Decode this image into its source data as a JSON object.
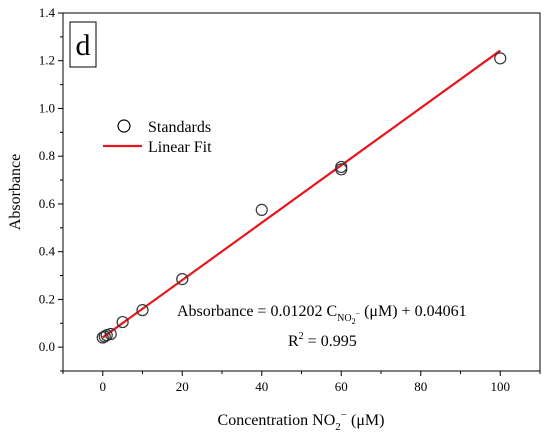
{
  "chart_data": {
    "type": "scatter",
    "panel_label": "d",
    "xlabel": {
      "prefix": "Concentration NO",
      "sub": "2",
      "sup": "−",
      "suffix": " (μM)"
    },
    "ylabel": "Absorbance",
    "xlim": [
      -10,
      110
    ],
    "ylim": [
      -0.1,
      1.4
    ],
    "xticks": [
      0,
      20,
      40,
      60,
      80,
      100
    ],
    "xtick_labels": [
      "0",
      "20",
      "40",
      "60",
      "80",
      "100"
    ],
    "yticks": [
      0.0,
      0.2,
      0.4,
      0.6,
      0.8,
      1.0,
      1.2,
      1.4
    ],
    "ytick_labels": [
      "0.0",
      "0.2",
      "0.4",
      "0.6",
      "0.8",
      "1.0",
      "1.2",
      "1.4"
    ],
    "grid": false,
    "legend": {
      "placement": "upper-left",
      "entries": [
        {
          "label": "Standards",
          "marker": "open-circle"
        },
        {
          "label": "Linear Fit",
          "marker": "line",
          "color": "#e8161c"
        }
      ]
    },
    "series": [
      {
        "name": "Standards",
        "kind": "scatter",
        "marker": "open-circle",
        "color": "#333333",
        "points": [
          {
            "x": 0,
            "y": 0.04
          },
          {
            "x": 0.5,
            "y": 0.045
          },
          {
            "x": 1,
            "y": 0.05
          },
          {
            "x": 2,
            "y": 0.055
          },
          {
            "x": 5,
            "y": 0.105
          },
          {
            "x": 10,
            "y": 0.155
          },
          {
            "x": 20,
            "y": 0.285
          },
          {
            "x": 40,
            "y": 0.575
          },
          {
            "x": 60,
            "y": 0.745
          },
          {
            "x": 60,
            "y": 0.755
          },
          {
            "x": 100,
            "y": 1.21
          }
        ]
      },
      {
        "name": "Linear Fit",
        "kind": "line",
        "color": "#e8161c",
        "slope": 0.01202,
        "intercept": 0.04061,
        "x_range": [
          0,
          100
        ]
      }
    ],
    "annotations": {
      "equation": {
        "lhs": "Absorbance = 0.01202 C",
        "sub_main": "NO",
        "sub_sub": "2",
        "sub_sup": "−",
        "rhs": " (μM) + 0.04061"
      },
      "r2": {
        "prefix": "R",
        "sup": "2",
        "suffix": " = 0.995"
      }
    }
  }
}
